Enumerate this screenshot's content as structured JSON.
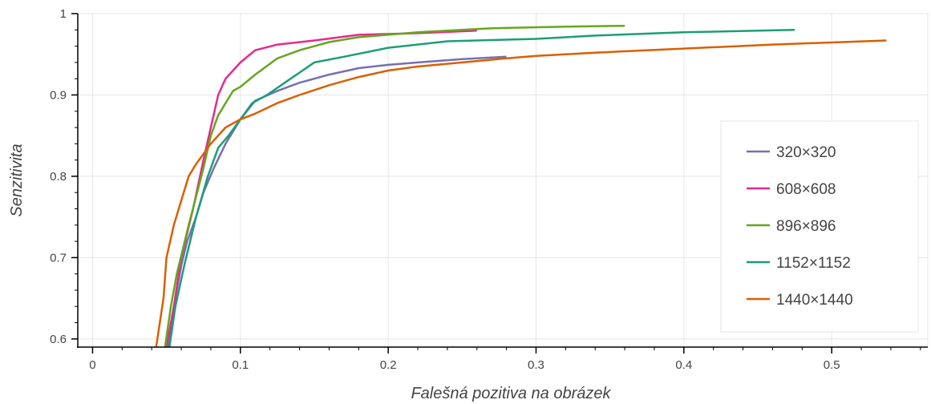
{
  "chart_data": {
    "type": "line",
    "title": "",
    "xlabel": "Falešná pozitiva na obrázek",
    "ylabel": "Senzitivita",
    "xlim": [
      -0.01,
      0.565
    ],
    "ylim": [
      0.59,
      1.0
    ],
    "xticks": [
      0,
      0.1,
      0.2,
      0.3,
      0.4,
      0.5
    ],
    "xtick_labels": [
      "0",
      "0.1",
      "0.2",
      "0.3",
      "0.4",
      "0.5"
    ],
    "yticks": [
      0.6,
      0.7,
      0.8,
      0.9,
      1.0
    ],
    "ytick_labels": [
      "0.6",
      "0.7",
      "0.8",
      "0.9",
      "1"
    ],
    "grid": true,
    "legend_position": "right",
    "series": [
      {
        "name": "320×320",
        "color": "#7570b3",
        "points": [
          [
            0.051,
            0.59
          ],
          [
            0.055,
            0.64
          ],
          [
            0.06,
            0.69
          ],
          [
            0.064,
            0.72
          ],
          [
            0.07,
            0.75
          ],
          [
            0.075,
            0.78
          ],
          [
            0.082,
            0.81
          ],
          [
            0.09,
            0.84
          ],
          [
            0.1,
            0.87
          ],
          [
            0.11,
            0.893
          ],
          [
            0.125,
            0.905
          ],
          [
            0.14,
            0.915
          ],
          [
            0.16,
            0.925
          ],
          [
            0.18,
            0.933
          ],
          [
            0.2,
            0.937
          ],
          [
            0.22,
            0.94
          ],
          [
            0.25,
            0.944
          ],
          [
            0.28,
            0.947
          ]
        ]
      },
      {
        "name": "608×608",
        "color": "#e7298a",
        "points": [
          [
            0.05,
            0.59
          ],
          [
            0.055,
            0.64
          ],
          [
            0.06,
            0.7
          ],
          [
            0.068,
            0.76
          ],
          [
            0.075,
            0.82
          ],
          [
            0.08,
            0.86
          ],
          [
            0.085,
            0.9
          ],
          [
            0.09,
            0.92
          ],
          [
            0.095,
            0.93
          ],
          [
            0.1,
            0.94
          ],
          [
            0.11,
            0.955
          ],
          [
            0.125,
            0.962
          ],
          [
            0.15,
            0.967
          ],
          [
            0.18,
            0.974
          ],
          [
            0.22,
            0.976
          ],
          [
            0.26,
            0.979
          ]
        ]
      },
      {
        "name": "896×896",
        "color": "#66a61e",
        "points": [
          [
            0.049,
            0.59
          ],
          [
            0.053,
            0.64
          ],
          [
            0.057,
            0.68
          ],
          [
            0.065,
            0.74
          ],
          [
            0.075,
            0.81
          ],
          [
            0.08,
            0.85
          ],
          [
            0.085,
            0.875
          ],
          [
            0.09,
            0.89
          ],
          [
            0.095,
            0.905
          ],
          [
            0.1,
            0.91
          ],
          [
            0.11,
            0.925
          ],
          [
            0.125,
            0.945
          ],
          [
            0.14,
            0.955
          ],
          [
            0.16,
            0.965
          ],
          [
            0.18,
            0.971
          ],
          [
            0.22,
            0.977
          ],
          [
            0.27,
            0.982
          ],
          [
            0.32,
            0.984
          ],
          [
            0.36,
            0.985
          ]
        ]
      },
      {
        "name": "1152×1152",
        "color": "#1b9e77",
        "points": [
          [
            0.052,
            0.59
          ],
          [
            0.056,
            0.64
          ],
          [
            0.062,
            0.69
          ],
          [
            0.07,
            0.75
          ],
          [
            0.078,
            0.8
          ],
          [
            0.085,
            0.835
          ],
          [
            0.092,
            0.85
          ],
          [
            0.1,
            0.87
          ],
          [
            0.108,
            0.89
          ],
          [
            0.118,
            0.9
          ],
          [
            0.13,
            0.915
          ],
          [
            0.15,
            0.94
          ],
          [
            0.17,
            0.947
          ],
          [
            0.2,
            0.958
          ],
          [
            0.24,
            0.966
          ],
          [
            0.3,
            0.969
          ],
          [
            0.34,
            0.973
          ],
          [
            0.4,
            0.977
          ],
          [
            0.475,
            0.98
          ]
        ]
      },
      {
        "name": "1440×1440",
        "color": "#d95f02",
        "points": [
          [
            0.043,
            0.59
          ],
          [
            0.048,
            0.65
          ],
          [
            0.05,
            0.7
          ],
          [
            0.055,
            0.74
          ],
          [
            0.06,
            0.77
          ],
          [
            0.065,
            0.8
          ],
          [
            0.07,
            0.815
          ],
          [
            0.08,
            0.84
          ],
          [
            0.09,
            0.86
          ],
          [
            0.1,
            0.87
          ],
          [
            0.11,
            0.877
          ],
          [
            0.125,
            0.89
          ],
          [
            0.14,
            0.9
          ],
          [
            0.16,
            0.912
          ],
          [
            0.18,
            0.922
          ],
          [
            0.2,
            0.93
          ],
          [
            0.22,
            0.935
          ],
          [
            0.25,
            0.94
          ],
          [
            0.28,
            0.945
          ],
          [
            0.3,
            0.948
          ],
          [
            0.34,
            0.952
          ],
          [
            0.4,
            0.957
          ],
          [
            0.46,
            0.962
          ],
          [
            0.537,
            0.967
          ]
        ]
      }
    ]
  }
}
